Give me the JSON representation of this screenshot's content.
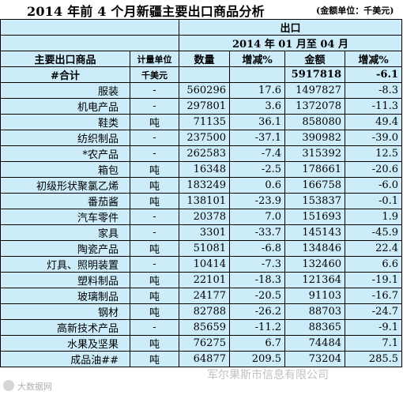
{
  "title": {
    "main": "2014 年前 4 个月新疆主要出口商品分析",
    "unit_note": "(金额单位：千美元)"
  },
  "header": {
    "export_group": "出口",
    "period": "2014 年 01 月至 04 月",
    "col_product": "主要出口商品",
    "col_unit": "计量单位",
    "col_qty": "数量",
    "col_qty_change": "增减%",
    "col_amount": "金额",
    "col_amount_change": "增减%"
  },
  "rows": [
    {
      "name": "#合计",
      "unit": "千美元",
      "qty": "",
      "qty_change": "",
      "amount": "5917818",
      "amount_change": "-6.1"
    },
    {
      "name": "服装",
      "unit": "-",
      "qty": "560296",
      "qty_change": "17.6",
      "amount": "1497827",
      "amount_change": "-8.3"
    },
    {
      "name": "机电产品",
      "unit": "-",
      "qty": "297801",
      "qty_change": "3.6",
      "amount": "1372078",
      "amount_change": "-11.3"
    },
    {
      "name": "鞋类",
      "unit": "吨",
      "qty": "71135",
      "qty_change": "36.1",
      "amount": "858080",
      "amount_change": "49.4"
    },
    {
      "name": "纺织制品",
      "unit": "-",
      "qty": "237500",
      "qty_change": "-37.1",
      "amount": "390982",
      "amount_change": "-39.0"
    },
    {
      "name": "*农产品",
      "unit": "-",
      "qty": "262583",
      "qty_change": "-7.4",
      "amount": "315392",
      "amount_change": "12.5"
    },
    {
      "name": "箱包",
      "unit": "吨",
      "qty": "16348",
      "qty_change": "-2.5",
      "amount": "178661",
      "amount_change": "-20.6"
    },
    {
      "name": "初级形状聚氯乙烯",
      "unit": "吨",
      "qty": "183249",
      "qty_change": "0.6",
      "amount": "166758",
      "amount_change": "-6.0"
    },
    {
      "name": "番茄酱",
      "unit": "吨",
      "qty": "138101",
      "qty_change": "-23.9",
      "amount": "153837",
      "amount_change": "-0.1"
    },
    {
      "name": "汽车零件",
      "unit": "-",
      "qty": "20378",
      "qty_change": "7.0",
      "amount": "151693",
      "amount_change": "1.9"
    },
    {
      "name": "家具",
      "unit": "-",
      "qty": "3301",
      "qty_change": "-33.7",
      "amount": "145143",
      "amount_change": "-45.9"
    },
    {
      "name": "陶瓷产品",
      "unit": "吨",
      "qty": "51081",
      "qty_change": "-6.8",
      "amount": "134846",
      "amount_change": "22.4"
    },
    {
      "name": "灯具、照明装置",
      "unit": "-",
      "qty": "10414",
      "qty_change": "-7.3",
      "amount": "132460",
      "amount_change": "6.6"
    },
    {
      "name": "塑料制品",
      "unit": "吨",
      "qty": "22101",
      "qty_change": "-18.3",
      "amount": "121364",
      "amount_change": "-19.1"
    },
    {
      "name": "玻璃制品",
      "unit": "吨",
      "qty": "24177",
      "qty_change": "-20.5",
      "amount": "91103",
      "amount_change": "-16.7"
    },
    {
      "name": "钢材",
      "unit": "吨",
      "qty": "82788",
      "qty_change": "-26.2",
      "amount": "88703",
      "amount_change": "-24.7"
    },
    {
      "name": "高新技术产品",
      "unit": "-",
      "qty": "85659",
      "qty_change": "-11.2",
      "amount": "88365",
      "amount_change": "-9.1"
    },
    {
      "name": "水果及坚果",
      "unit": "吨",
      "qty": "76275",
      "qty_change": "6.7",
      "amount": "74484",
      "amount_change": "7.1"
    },
    {
      "name": "成品油##",
      "unit": "吨",
      "qty": "64877",
      "qty_change": "209.5",
      "amount": "73204",
      "amount_change": "285.5"
    }
  ],
  "watermark": {
    "left": "大数据网",
    "right": "军尔果斯市信息有限公司"
  }
}
